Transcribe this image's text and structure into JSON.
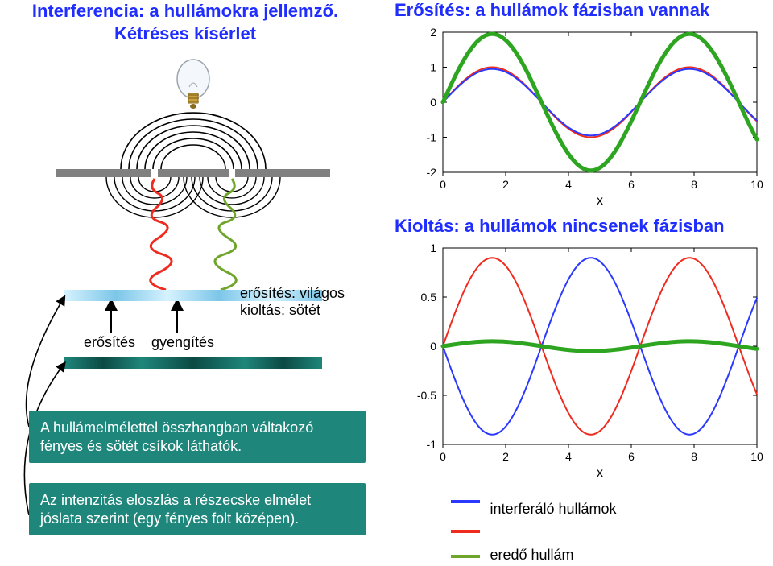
{
  "left": {
    "title_line1": "Interferencia: a hullámokra jellemző.",
    "title_line2": "Kétréses kísérlet",
    "label_erosites": "erősítés",
    "label_gyengites": "gyengítés",
    "label_erosites_vilagos": "erősítés: világos",
    "label_kioltas_sotet": "kioltás: sötét",
    "box1_line1": "A hullámelmélettel összhangban váltakozó",
    "box1_line2": "fényes és sötét csíkok láthatók.",
    "box2_line1": "Az intenzitás eloszlás a részecske elmélet",
    "box2_line2": "jóslata szerint (egy fényes folt középen).",
    "arrow_color": "#000000",
    "bulb": {
      "glass_color": "#f0f4f8",
      "base_color": "#c9a23f"
    },
    "waves": {
      "arc_color": "#000000",
      "left_wave_color": "#ef2b1f",
      "right_wave_color": "#6fa52a"
    },
    "barrier_color": "#808080",
    "screen_gradient": [
      "#d6f2ff",
      "#7cc6e8"
    ],
    "dark_gradient": [
      "#1f867b",
      "#0c4a44"
    ]
  },
  "right": {
    "title_top": "Erősítés: a hullámok fázisban vannak",
    "title_mid": "Kioltás: a hullámok nincsenek fázisban",
    "legend_interf": "interferáló hullámok",
    "legend_eredo": "eredő hullám",
    "chart_top": {
      "type": "line",
      "xlim": [
        0,
        10
      ],
      "ylim": [
        -2,
        2
      ],
      "xticks": [
        0,
        2,
        4,
        6,
        8,
        10
      ],
      "yticks": [
        -2,
        -1,
        0,
        1,
        2
      ],
      "xlabel": "x",
      "series": [
        {
          "name": "wave1",
          "color": "#ef2b1f",
          "amp": 1.0,
          "phase": 0,
          "width": 2
        },
        {
          "name": "wave2",
          "color": "#2b39ff",
          "amp": 0.95,
          "phase": 0,
          "width": 2
        },
        {
          "name": "sum",
          "color": "#2ea520",
          "amp": 1.95,
          "phase": 0,
          "width": 5
        }
      ],
      "background": "#ffffff",
      "grid": false,
      "axis_color": "#000000",
      "tick_fontsize": 14,
      "label_fontsize": 16
    },
    "chart_bottom": {
      "type": "line",
      "xlim": [
        0,
        10
      ],
      "ylim": [
        -1,
        1
      ],
      "xticks": [
        0,
        2,
        4,
        6,
        8,
        10
      ],
      "yticks": [
        -1,
        -0.5,
        0,
        0.5,
        1
      ],
      "xlabel": "x",
      "series": [
        {
          "name": "wave1",
          "color": "#ef2b1f",
          "amp": 0.9,
          "phase": 0,
          "width": 2
        },
        {
          "name": "wave2",
          "color": "#2b39ff",
          "amp": 0.9,
          "phase": 3.14159,
          "width": 2
        },
        {
          "name": "sum",
          "color": "#2ea520",
          "amp": 0.05,
          "phase": 0,
          "width": 5
        }
      ],
      "background": "#ffffff",
      "grid": false,
      "axis_color": "#000000",
      "tick_fontsize": 14,
      "label_fontsize": 16
    },
    "legend_colors": {
      "interf1": "#2b39ff",
      "interf2": "#ef2b1f",
      "eredo": "#6fa52a"
    }
  }
}
